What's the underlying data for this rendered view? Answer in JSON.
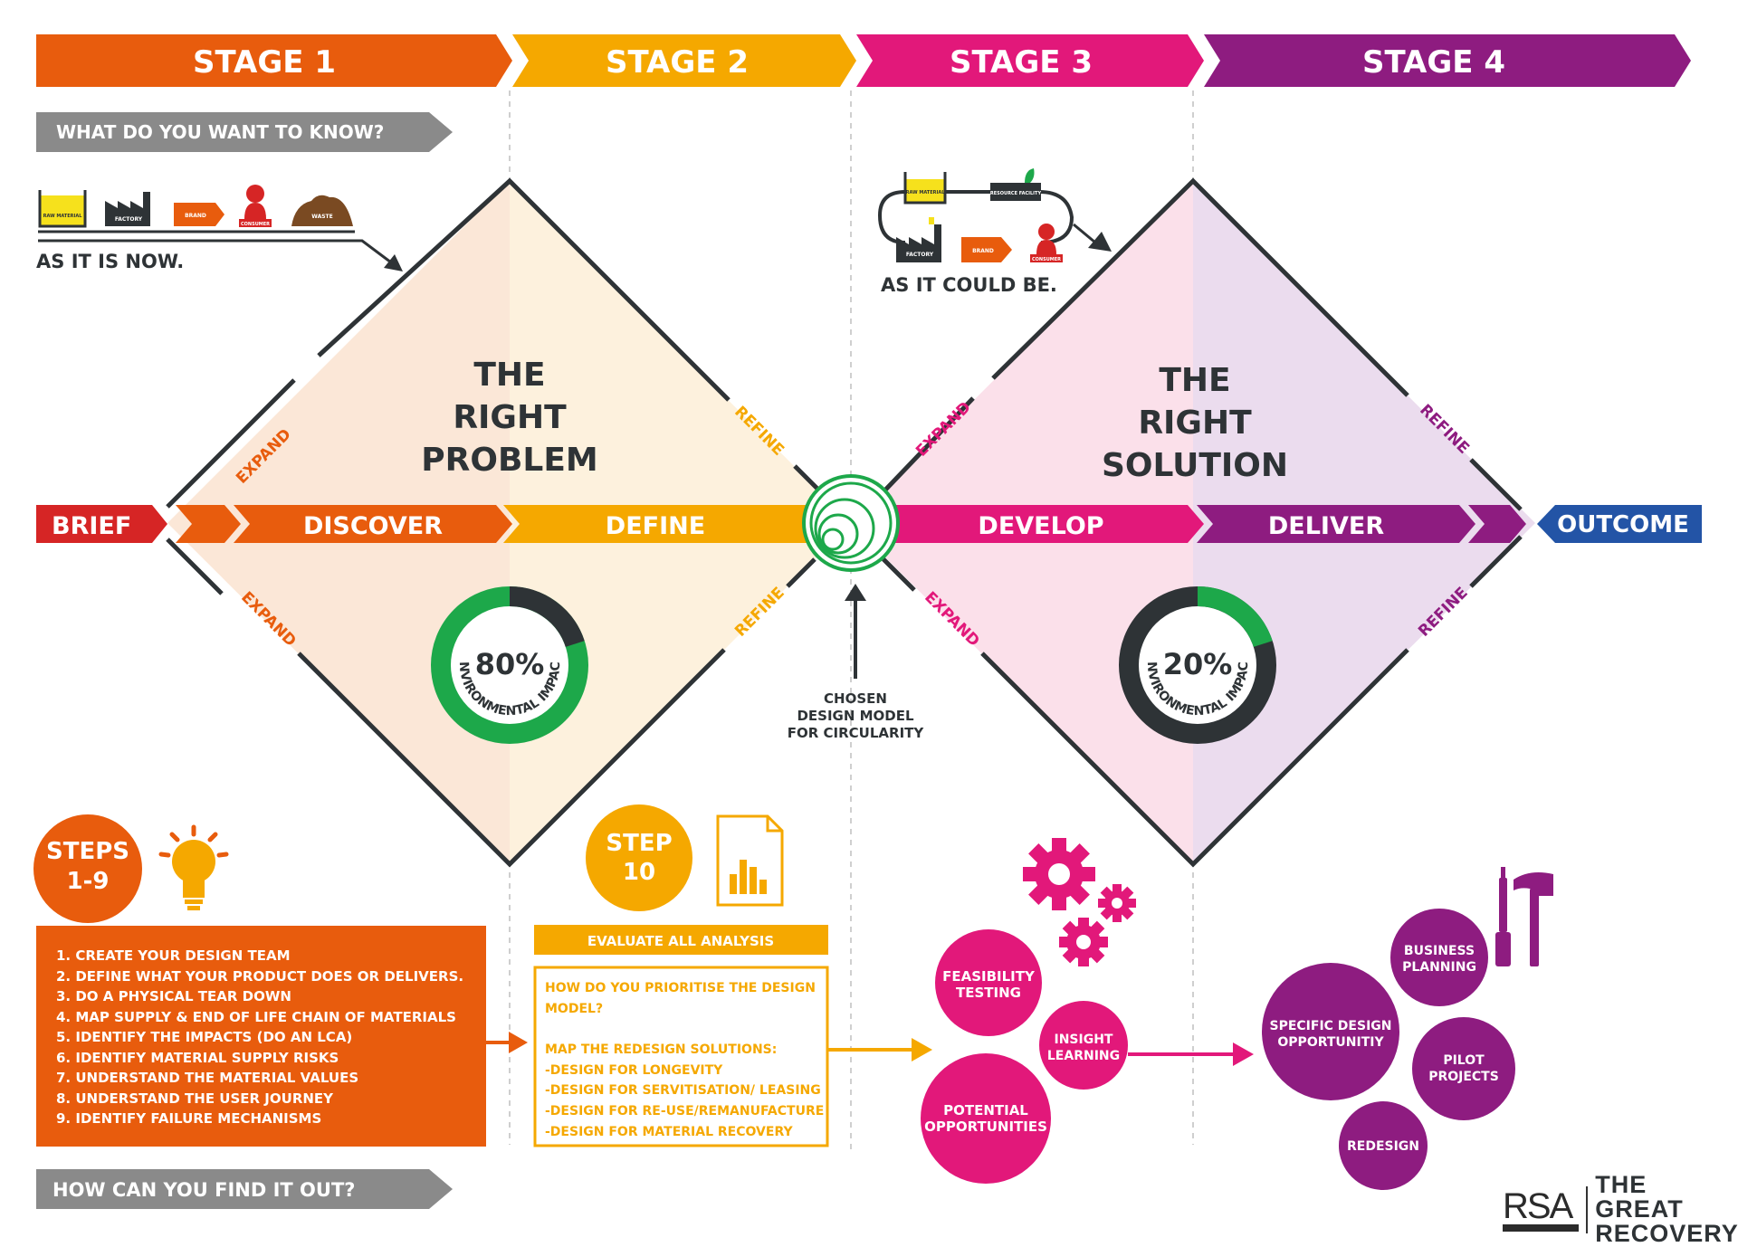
{
  "colors": {
    "stage1": "#e85c0d",
    "stage2": "#f5a800",
    "stage3": "#e2187a",
    "stage4": "#8e1c80",
    "brief": "#d62525",
    "outcome": "#2354a6",
    "grey": "#8a8a8a",
    "green": "#1da84a",
    "dark": "#2e3336"
  },
  "stages": [
    "STAGE 1",
    "STAGE 2",
    "STAGE 3",
    "STAGE 4"
  ],
  "questions": {
    "top": "WHAT DO YOU WANT TO KNOW?",
    "bottom": "HOW CAN YOU FIND IT OUT?"
  },
  "linear_chain": {
    "items": [
      "RAW MATERIAL",
      "FACTORY",
      "BRAND",
      "CONSUMER",
      "WASTE"
    ],
    "caption": "AS IT IS NOW."
  },
  "circular_chain": {
    "items": [
      "RAW MATERIAL",
      "RESOURCE FACILITY",
      "FACTORY",
      "BRAND",
      "CONSUMER"
    ],
    "caption": "AS IT COULD BE."
  },
  "diamonds": {
    "problem": {
      "title": [
        "THE",
        "RIGHT",
        "PROBLEM"
      ],
      "expand": "EXPAND",
      "refine": "REFINE",
      "impact_percent": 80,
      "impact_label": "ENVIRONMENTAL IMPACT"
    },
    "solution": {
      "title": [
        "THE",
        "RIGHT",
        "SOLUTION"
      ],
      "expand": "EXPAND",
      "refine": "REFINE",
      "impact_percent": 20,
      "impact_label": "ENVIRONMENTAL IMPACT"
    }
  },
  "impact_display": {
    "problem": "80%",
    "solution": "20%"
  },
  "flow": {
    "brief": "BRIEF",
    "discover": "DISCOVER",
    "define": "DEFINE",
    "develop": "DEVELOP",
    "deliver": "DELIVER",
    "outcome": "OUTCOME"
  },
  "chosen_model": [
    "CHOSEN",
    "DESIGN MODEL",
    "FOR CIRCULARITY"
  ],
  "steps_1_9": {
    "badge": [
      "STEPS",
      "1-9"
    ],
    "items": [
      "1. CREATE YOUR DESIGN TEAM",
      "2. DEFINE WHAT YOUR PRODUCT DOES OR DELIVERS.",
      "3. DO A PHYSICAL TEAR DOWN",
      "4. MAP SUPPLY & END OF LIFE CHAIN OF MATERIALS",
      "5. IDENTIFY THE IMPACTS (DO AN LCA)",
      "6. IDENTIFY MATERIAL SUPPLY RISKS",
      "7. UNDERSTAND THE MATERIAL VALUES",
      "8. UNDERSTAND THE USER JOURNEY",
      "9. IDENTIFY FAILURE MECHANISMS"
    ]
  },
  "step_10": {
    "badge": [
      "STEP",
      "10"
    ],
    "header": "EVALUATE ALL ANALYSIS",
    "lines": [
      "HOW DO YOU PRIORITISE THE DESIGN",
      "MODEL?",
      "",
      "MAP THE REDESIGN SOLUTIONS:",
      "-DESIGN FOR LONGEVITY",
      "-DESIGN FOR SERVITISATION/ LEASING",
      "-DESIGN FOR RE-USE/REMANUFACTURE",
      "-DESIGN FOR MATERIAL RECOVERY"
    ]
  },
  "stage3_bubbles": [
    [
      "FEASIBILITY",
      "TESTING"
    ],
    [
      "INSIGHT",
      "LEARNING"
    ],
    [
      "POTENTIAL",
      "OPPORTUNITIES"
    ]
  ],
  "stage4_bubbles": [
    [
      "BUSINESS",
      "PLANNING"
    ],
    [
      "SPECIFIC DESIGN",
      "OPPORTUNITIY"
    ],
    [
      "PILOT",
      "PROJECTS"
    ],
    [
      "REDESIGN"
    ]
  ],
  "brand": {
    "rsa": "RSA",
    "line1": "THE GREAT",
    "line2": "RECOVERY"
  }
}
